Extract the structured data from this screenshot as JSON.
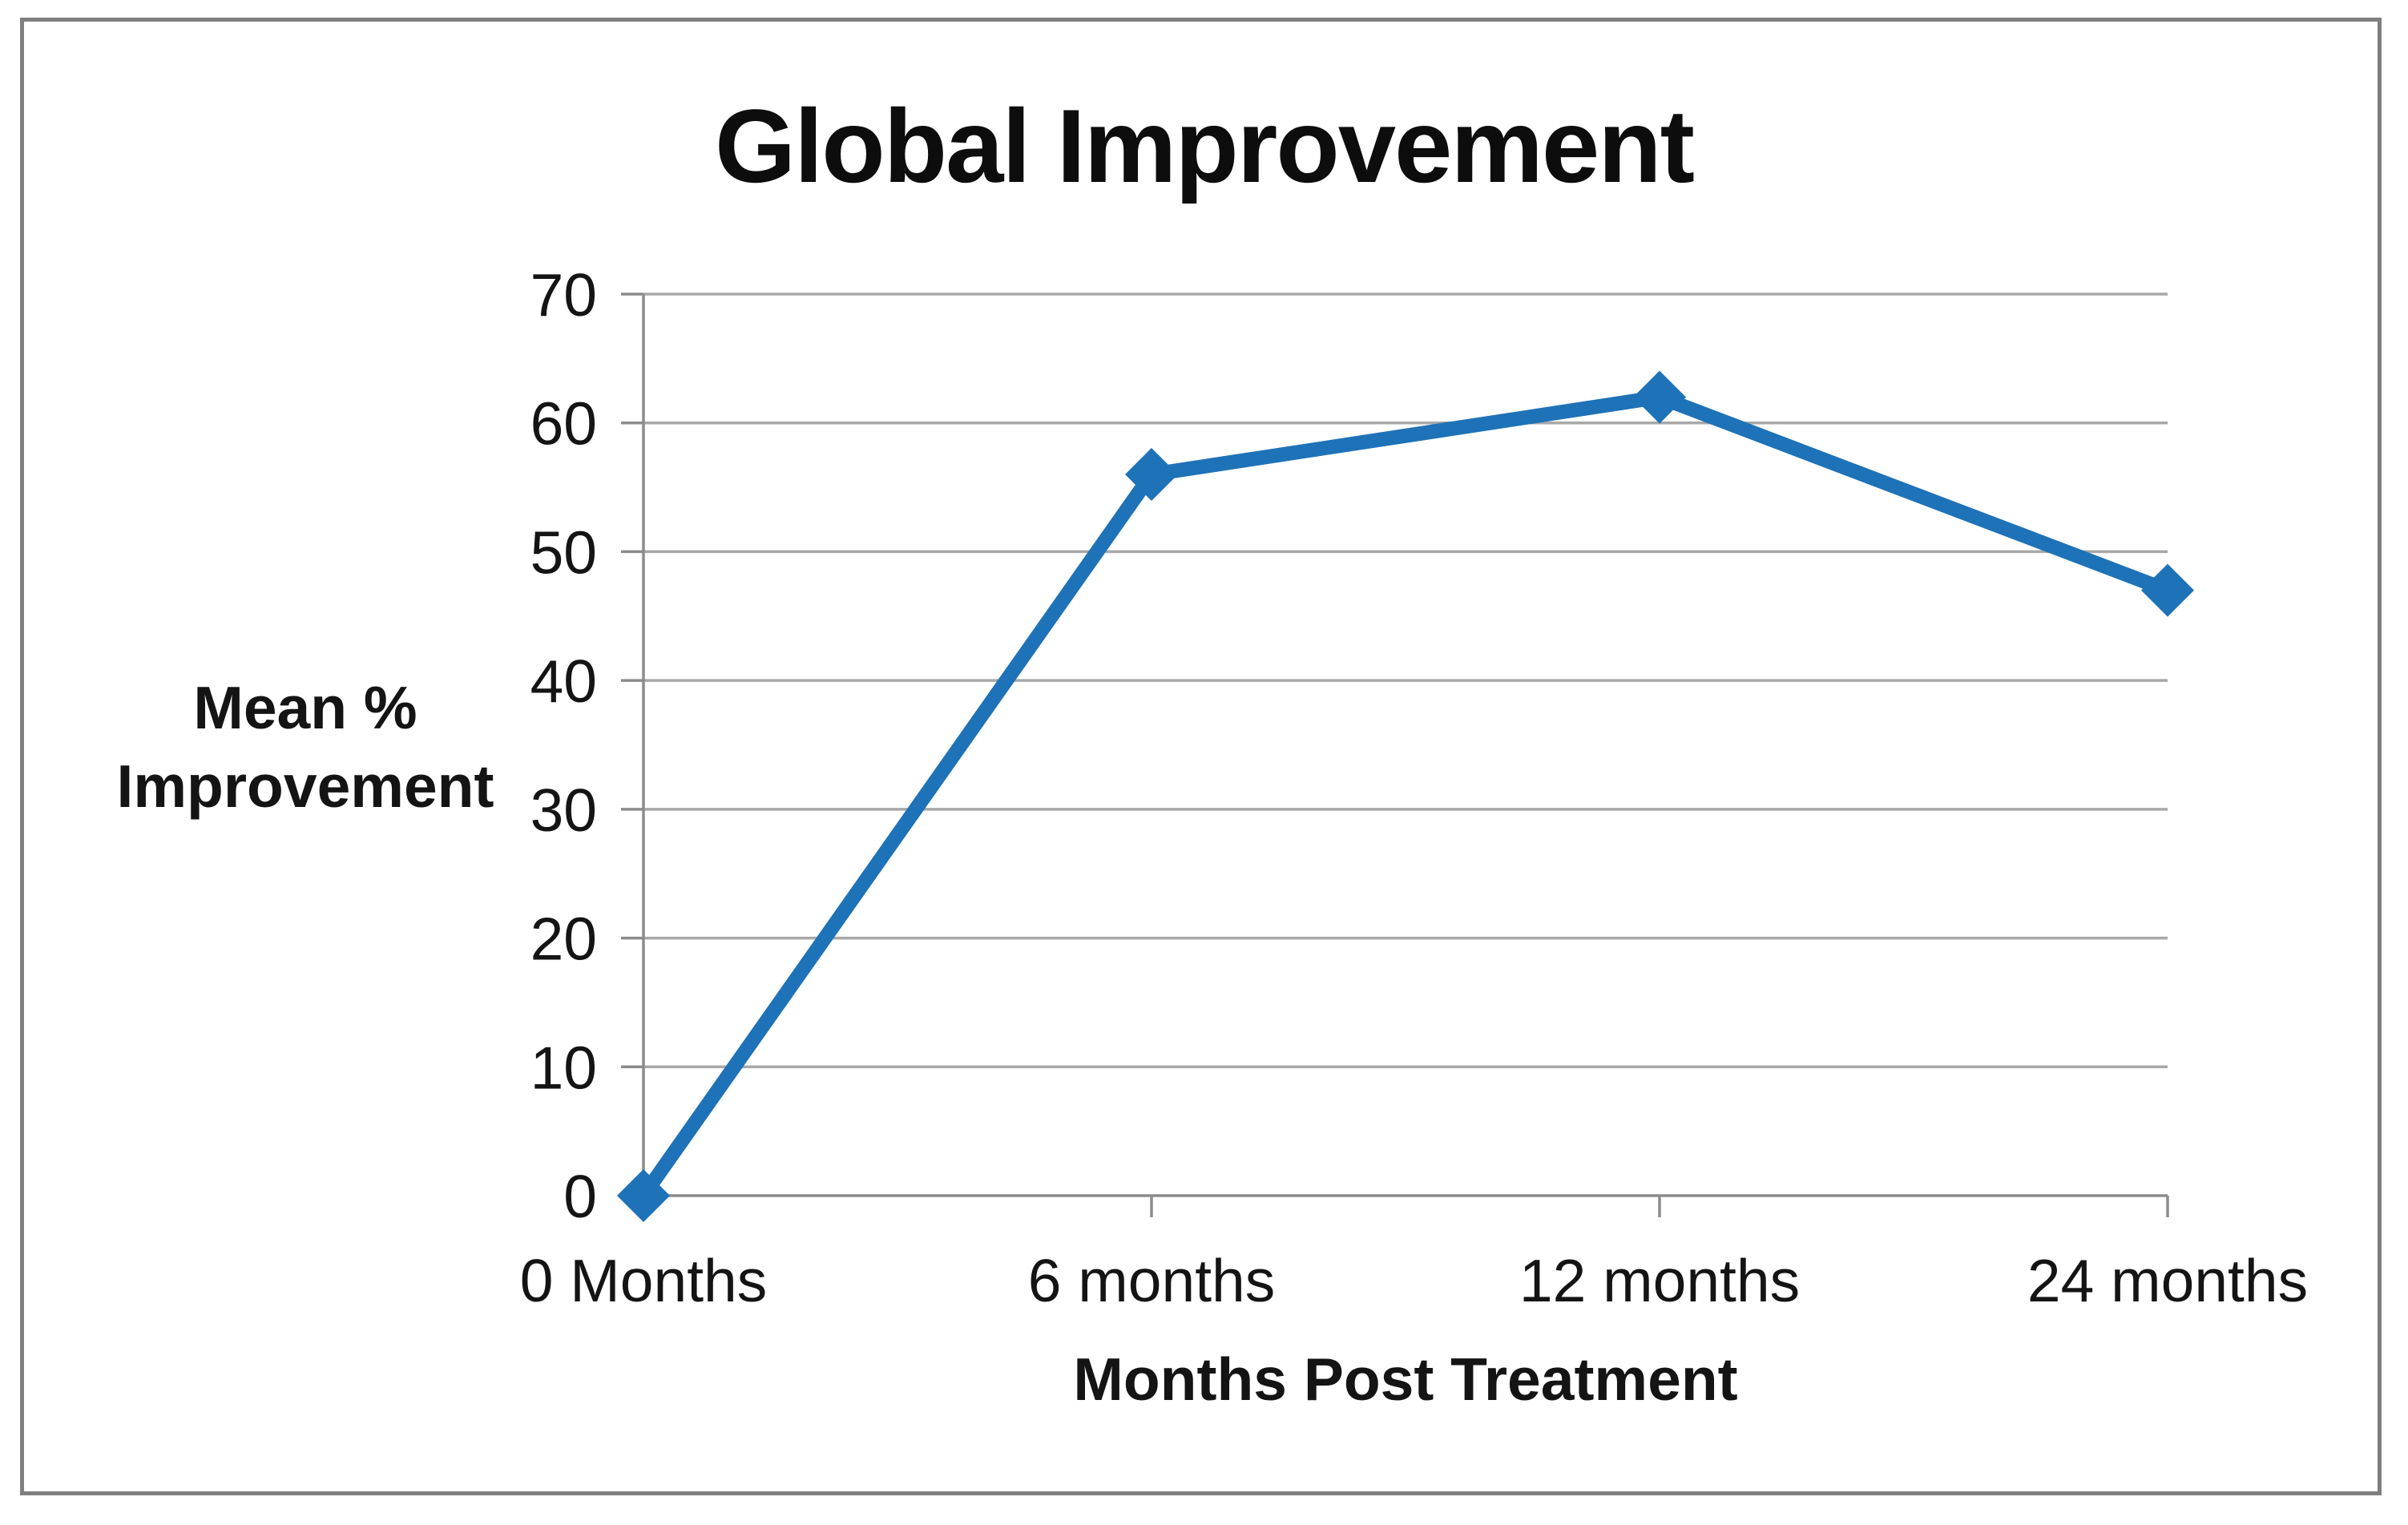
{
  "figure": {
    "background": "#ffffff",
    "border_color": "#7f7f7f"
  },
  "chart_data": {
    "type": "line",
    "title": "Global Improvement",
    "xlabel": "Months Post Treatment",
    "ylabel": "Mean %\nImprovement",
    "categories": [
      "0 Months",
      "6 months",
      "12 months",
      "24 months"
    ],
    "values": [
      0,
      56,
      62,
      47
    ],
    "ylim": [
      0,
      70
    ],
    "yticks": [
      0,
      10,
      20,
      30,
      40,
      50,
      60,
      70
    ],
    "grid": "horizontal",
    "legend_position": "none",
    "marker_shape": "diamond",
    "line_color": "#1e72b8",
    "gridline_color": "#a8a8a8",
    "axis_color": "#8c8c8c",
    "text_color": "#141414"
  }
}
